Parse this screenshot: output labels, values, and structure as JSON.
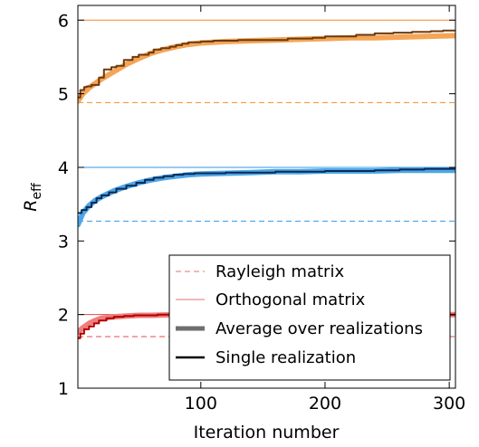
{
  "chart_data": {
    "type": "line",
    "title": "",
    "xlabel": "Iteration number",
    "ylabel_main": "R",
    "ylabel_sub": "eff",
    "xlim": [
      1,
      305
    ],
    "ylim": [
      1,
      6.2
    ],
    "xticks": [
      100,
      200,
      300
    ],
    "yticks": [
      1,
      2,
      3,
      4,
      5,
      6
    ],
    "grid": false,
    "legend_position": "lower-right",
    "legend": [
      {
        "label": "Rayleigh matrix",
        "style": "dashed-thin"
      },
      {
        "label": "Orthogonal matrix",
        "style": "solid-thin"
      },
      {
        "label": "Average over realizations",
        "style": "solid-thick"
      },
      {
        "label": "Single realization",
        "style": "solid-medium"
      }
    ],
    "groups": [
      {
        "color_light": "#f5a556",
        "color_dark": "#6b3a10",
        "color_ref": "#f28c28",
        "rayleigh": 4.88,
        "orthogonal": 6.0,
        "average": {
          "x": [
            1,
            5,
            10,
            15,
            20,
            30,
            40,
            50,
            60,
            70,
            80,
            90,
            100,
            120,
            140,
            160,
            180,
            200,
            220,
            240,
            260,
            280,
            305
          ],
          "y": [
            4.9,
            5.0,
            5.08,
            5.14,
            5.2,
            5.3,
            5.4,
            5.48,
            5.55,
            5.6,
            5.64,
            5.67,
            5.69,
            5.71,
            5.72,
            5.73,
            5.74,
            5.75,
            5.76,
            5.76,
            5.77,
            5.78,
            5.79
          ]
        },
        "single": {
          "x": [
            1,
            3,
            6,
            8,
            12,
            18,
            22,
            28,
            32,
            38,
            45,
            50,
            58,
            62,
            68,
            75,
            80,
            85,
            90,
            100,
            110,
            120,
            130,
            150,
            170,
            190,
            200,
            210,
            225,
            240,
            255,
            270,
            285,
            295,
            305
          ],
          "y": [
            4.95,
            5.05,
            5.09,
            5.1,
            5.12,
            5.22,
            5.33,
            5.36,
            5.38,
            5.46,
            5.5,
            5.53,
            5.56,
            5.6,
            5.62,
            5.64,
            5.66,
            5.68,
            5.7,
            5.71,
            5.72,
            5.72,
            5.73,
            5.73,
            5.75,
            5.76,
            5.78,
            5.78,
            5.8,
            5.82,
            5.83,
            5.84,
            5.85,
            5.86,
            5.87
          ]
        }
      },
      {
        "color_light": "#4da6e8",
        "color_dark": "#0a2a55",
        "color_ref": "#3399e6",
        "rayleigh": 3.27,
        "orthogonal": 4.0,
        "average": {
          "x": [
            1,
            5,
            10,
            15,
            20,
            30,
            40,
            50,
            60,
            70,
            80,
            90,
            100,
            120,
            140,
            160,
            180,
            200,
            220,
            240,
            260,
            280,
            305
          ],
          "y": [
            3.22,
            3.38,
            3.48,
            3.55,
            3.6,
            3.68,
            3.74,
            3.79,
            3.83,
            3.86,
            3.88,
            3.9,
            3.91,
            3.92,
            3.93,
            3.94,
            3.94,
            3.95,
            3.95,
            3.95,
            3.96,
            3.96,
            3.96
          ]
        },
        "single": {
          "x": [
            1,
            4,
            8,
            12,
            16,
            20,
            26,
            32,
            40,
            48,
            55,
            62,
            70,
            78,
            86,
            95,
            105,
            120,
            140,
            160,
            180,
            200,
            220,
            240,
            260,
            280,
            305
          ],
          "y": [
            3.38,
            3.42,
            3.46,
            3.52,
            3.58,
            3.62,
            3.66,
            3.71,
            3.75,
            3.79,
            3.83,
            3.86,
            3.88,
            3.9,
            3.91,
            3.92,
            3.92,
            3.93,
            3.93,
            3.94,
            3.94,
            3.95,
            3.95,
            3.96,
            3.97,
            3.98,
            3.99
          ]
        }
      },
      {
        "color_light": "#f07c7c",
        "color_dark": "#b00000",
        "color_ref": "#e84a4a",
        "rayleigh": 1.7,
        "orthogonal": 2.0,
        "average": {
          "x": [
            1,
            5,
            10,
            15,
            20,
            30,
            40,
            50,
            60,
            80,
            100,
            150,
            200,
            250,
            305
          ],
          "y": [
            1.76,
            1.82,
            1.88,
            1.92,
            1.95,
            1.97,
            1.98,
            1.99,
            1.99,
            2.0,
            2.0,
            2.0,
            2.0,
            2.0,
            2.0
          ]
        },
        "single": {
          "x": [
            1,
            3,
            6,
            10,
            14,
            18,
            24,
            30,
            38,
            46,
            55,
            65,
            80,
            100,
            150,
            200,
            250,
            305
          ],
          "y": [
            1.68,
            1.74,
            1.8,
            1.84,
            1.88,
            1.92,
            1.95,
            1.97,
            1.98,
            1.99,
            1.99,
            2.0,
            2.0,
            2.0,
            2.0,
            2.0,
            2.0,
            2.0
          ]
        }
      }
    ]
  }
}
